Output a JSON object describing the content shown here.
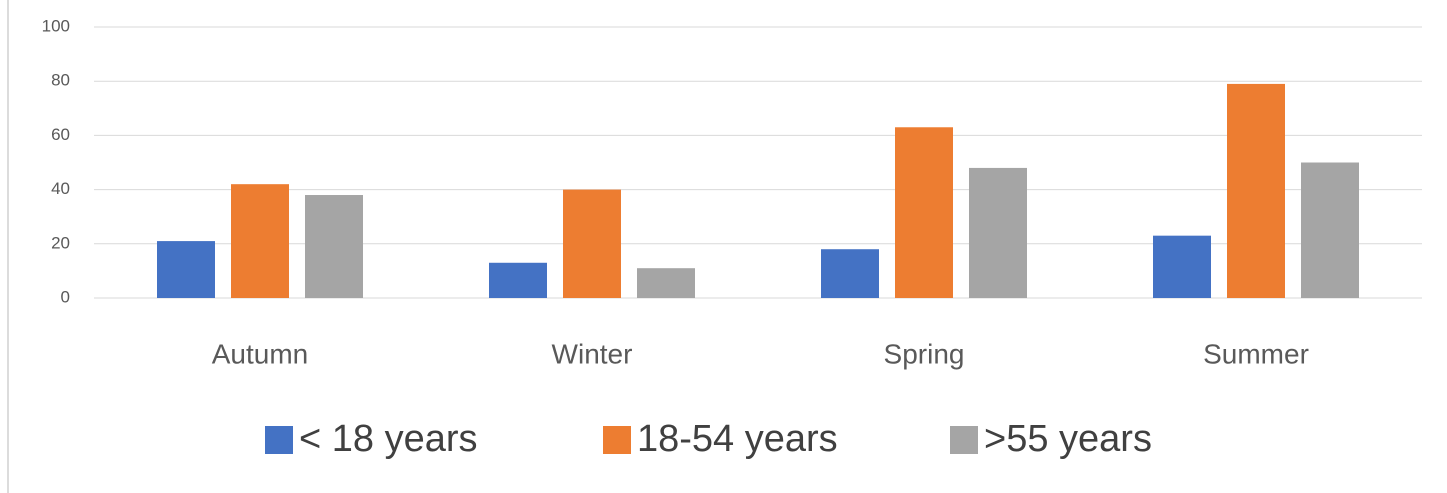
{
  "chart_data": {
    "type": "bar",
    "categories": [
      "Autumn",
      "Winter",
      "Spring",
      "Summer"
    ],
    "series": [
      {
        "name": "< 18 years",
        "color": "#4472c4",
        "values": [
          21,
          13,
          18,
          23
        ]
      },
      {
        "name": "18-54 years",
        "color": "#ed7d31",
        "values": [
          42,
          40,
          63,
          79
        ]
      },
      {
        "name": ">55 years",
        "color": "#a5a5a5",
        "values": [
          38,
          11,
          48,
          50
        ]
      }
    ],
    "ylim": [
      0,
      100
    ],
    "yticks": [
      0,
      20,
      40,
      60,
      80,
      100
    ],
    "grid": true,
    "legend": "bottom"
  }
}
